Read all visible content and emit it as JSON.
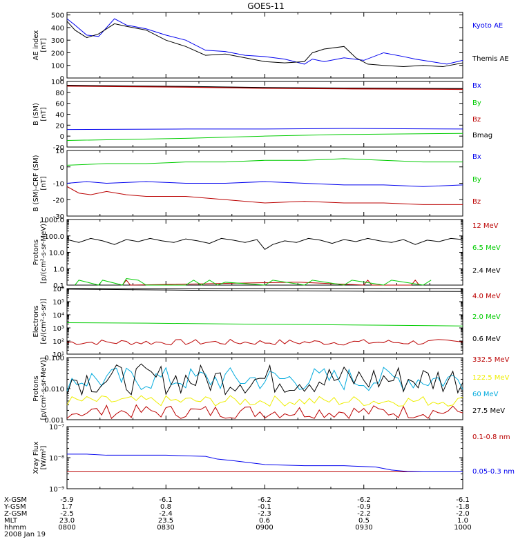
{
  "title": "GOES-11",
  "colors": {
    "black": "#000000",
    "blue": "#0000ee",
    "green": "#00cc00",
    "red": "#bb0000",
    "cyan": "#00aadd",
    "yellow": "#eeee00"
  },
  "chart_data": [
    {
      "id": "ae",
      "type": "line",
      "ylabel": [
        "AE index",
        "[nT]"
      ],
      "ylim": [
        0,
        520
      ],
      "log": false,
      "yticks": [
        0,
        100,
        200,
        300,
        400,
        500
      ],
      "series": [
        {
          "name": "Kyoto AE",
          "color": "blue",
          "x": [
            0,
            0.02,
            0.05,
            0.08,
            0.12,
            0.15,
            0.2,
            0.25,
            0.3,
            0.35,
            0.4,
            0.45,
            0.5,
            0.55,
            0.6,
            0.62,
            0.65,
            0.7,
            0.75,
            0.8,
            0.85,
            0.88,
            0.92,
            0.96,
            1.0
          ],
          "values": [
            470,
            420,
            340,
            330,
            470,
            420,
            390,
            340,
            300,
            220,
            210,
            180,
            170,
            150,
            110,
            150,
            130,
            160,
            140,
            200,
            170,
            150,
            130,
            110,
            140
          ]
        },
        {
          "name": "Themis AE",
          "color": "black",
          "x": [
            0,
            0.02,
            0.05,
            0.08,
            0.12,
            0.15,
            0.2,
            0.25,
            0.3,
            0.35,
            0.4,
            0.45,
            0.5,
            0.55,
            0.6,
            0.62,
            0.65,
            0.7,
            0.73,
            0.76,
            0.8,
            0.85,
            0.9,
            0.95,
            1.0
          ],
          "values": [
            450,
            380,
            320,
            350,
            430,
            410,
            380,
            300,
            250,
            180,
            190,
            160,
            130,
            120,
            130,
            200,
            230,
            250,
            160,
            110,
            100,
            90,
            100,
            90,
            120
          ]
        }
      ]
    },
    {
      "id": "bfield",
      "type": "line",
      "ylabel": [
        "B (SM)",
        "[nT]"
      ],
      "ylim": [
        -20,
        100
      ],
      "log": false,
      "yticks": [
        -20,
        0,
        20,
        40,
        60,
        80,
        100
      ],
      "series": [
        {
          "name": "Bx",
          "color": "blue",
          "x": [
            0,
            0.3,
            0.5,
            0.7,
            1.0
          ],
          "values": [
            12,
            13,
            13,
            14,
            13
          ]
        },
        {
          "name": "By",
          "color": "green",
          "x": [
            0,
            0.3,
            0.5,
            0.7,
            1.0
          ],
          "values": [
            -8,
            -4,
            0,
            3,
            5
          ]
        },
        {
          "name": "Bz",
          "color": "red",
          "x": [
            0,
            0.3,
            0.5,
            0.7,
            1.0
          ],
          "values": [
            92,
            90,
            88,
            87,
            86
          ]
        },
        {
          "name": "Bmag",
          "color": "black",
          "x": [
            0,
            0.3,
            0.5,
            0.7,
            1.0
          ],
          "values": [
            93,
            91,
            89,
            88,
            87
          ]
        }
      ]
    },
    {
      "id": "bcrf",
      "type": "line",
      "ylabel": [
        "B (SM)-CRF (SM)",
        "[nT]"
      ],
      "ylim": [
        -30,
        10
      ],
      "log": false,
      "yticks": [
        -30,
        -20,
        -10,
        0,
        10
      ],
      "series": [
        {
          "name": "Bx",
          "color": "blue",
          "x": [
            0,
            0.05,
            0.1,
            0.2,
            0.3,
            0.4,
            0.5,
            0.6,
            0.7,
            0.8,
            0.9,
            1.0
          ],
          "values": [
            -10,
            -9,
            -10,
            -9,
            -10,
            -10,
            -9,
            -10,
            -11,
            -11,
            -12,
            -11
          ]
        },
        {
          "name": "By",
          "color": "green",
          "x": [
            0,
            0.1,
            0.2,
            0.3,
            0.4,
            0.5,
            0.6,
            0.7,
            0.8,
            0.9,
            1.0
          ],
          "values": [
            1,
            2,
            2,
            3,
            3,
            4,
            4,
            5,
            4,
            3,
            3
          ]
        },
        {
          "name": "Bz",
          "color": "red",
          "x": [
            0,
            0.03,
            0.06,
            0.1,
            0.15,
            0.2,
            0.3,
            0.4,
            0.5,
            0.6,
            0.7,
            0.8,
            0.9,
            1.0
          ],
          "values": [
            -12,
            -16,
            -17,
            -15,
            -17,
            -18,
            -18,
            -20,
            -22,
            -21,
            -22,
            -22,
            -23,
            -23
          ]
        }
      ]
    },
    {
      "id": "protons1",
      "type": "line",
      "ylabel": [
        "Protons",
        "[p/(cm²-s-sr-MeV)]"
      ],
      "ylim": [
        0.1,
        1000
      ],
      "log": true,
      "yticks": [
        0.1,
        1.0,
        10.0,
        100.0,
        1000.0
      ],
      "ytick_labels": [
        "0.1",
        "1.0",
        "10.0",
        "100.0",
        "1000.0"
      ],
      "series": [
        {
          "name": "12 MeV",
          "color": "red",
          "x": [
            0.14,
            0.15,
            0.16,
            0.57,
            0.58,
            0.59,
            0.75,
            0.76,
            0.77,
            0.87,
            0.88,
            0.89
          ],
          "values": [
            0.1,
            0.2,
            0.1,
            0.15,
            0.15,
            0.15,
            0.1,
            0.2,
            0.1,
            0.1,
            0.2,
            0.1
          ]
        },
        {
          "name": "6.5 MeV",
          "color": "green",
          "x": [
            0.02,
            0.03,
            0.08,
            0.09,
            0.14,
            0.15,
            0.18,
            0.2,
            0.3,
            0.32,
            0.34,
            0.36,
            0.38,
            0.4,
            0.5,
            0.52,
            0.6,
            0.62,
            0.7,
            0.72,
            0.8,
            0.82,
            0.9,
            0.92
          ],
          "values": [
            0.1,
            0.2,
            0.1,
            0.2,
            0.1,
            0.25,
            0.2,
            0.1,
            0.1,
            0.2,
            0.1,
            0.2,
            0.1,
            0.15,
            0.1,
            0.2,
            0.1,
            0.2,
            0.1,
            0.2,
            0.1,
            0.2,
            0.1,
            0.2
          ]
        },
        {
          "name": "2.4 MeV",
          "color": "black",
          "x": [
            0,
            0.03,
            0.06,
            0.09,
            0.12,
            0.15,
            0.18,
            0.21,
            0.24,
            0.27,
            0.3,
            0.33,
            0.36,
            0.39,
            0.42,
            0.45,
            0.48,
            0.5,
            0.52,
            0.55,
            0.58,
            0.61,
            0.64,
            0.67,
            0.7,
            0.73,
            0.76,
            0.79,
            0.82,
            0.85,
            0.88,
            0.91,
            0.94,
            0.97,
            1.0
          ],
          "values": [
            60,
            40,
            70,
            50,
            30,
            60,
            45,
            70,
            50,
            40,
            65,
            50,
            35,
            70,
            55,
            40,
            60,
            15,
            30,
            50,
            40,
            70,
            55,
            35,
            60,
            45,
            70,
            50,
            40,
            60,
            30,
            55,
            45,
            70,
            60
          ]
        }
      ]
    },
    {
      "id": "electrons",
      "type": "line",
      "ylabel": [
        "Electrons",
        "[e/(cm²-s-sr)]"
      ],
      "ylim": [
        10,
        1000000
      ],
      "log": true,
      "yticks": [
        10,
        100,
        1000,
        10000,
        100000,
        1000000
      ],
      "ytick_labels": [
        "10¹",
        "10²",
        "10³",
        "10⁴",
        "10⁵",
        "10⁶"
      ],
      "series": [
        {
          "name": "4.0 MeV",
          "color": "red",
          "x": [],
          "values": []
        },
        {
          "name": "2.0 MeV",
          "color": "green",
          "x": [
            0,
            0.2,
            0.4,
            0.6,
            0.8,
            1.0
          ],
          "values": [
            2500,
            2300,
            2000,
            1800,
            1600,
            1400
          ]
        },
        {
          "name": "0.6 MeV",
          "color": "black",
          "x": [
            0,
            0.2,
            0.4,
            0.6,
            0.8,
            1.0
          ],
          "values": [
            900000,
            800000,
            700000,
            650000,
            620000,
            600000
          ]
        }
      ]
    },
    {
      "id": "protons2",
      "type": "line",
      "ylabel": [
        "Protons",
        "[p/(cm²-s-sr-MeV)]"
      ],
      "ylim": [
        0.001,
        0.1
      ],
      "log": true,
      "yticks": [
        0.001,
        0.01,
        0.1
      ],
      "ytick_labels": [
        "0.001",
        "0.010",
        "0.100"
      ],
      "series": [
        {
          "name": "332.5 MeV",
          "color": "red",
          "x": [],
          "values": []
        },
        {
          "name": "122.5 MeV",
          "color": "yellow",
          "x": [],
          "values": []
        },
        {
          "name": "60 MeV",
          "color": "cyan",
          "x": [],
          "values": []
        },
        {
          "name": "27.5 MeV",
          "color": "black",
          "x": [],
          "values": []
        }
      ]
    },
    {
      "id": "xray",
      "type": "line",
      "ylabel": [
        "Xray Flux",
        "[W/m²]"
      ],
      "ylim": [
        1e-09,
        1e-07
      ],
      "log": true,
      "yticks": [
        1e-09,
        1e-08,
        1e-07
      ],
      "ytick_labels": [
        "10⁻⁹",
        "10⁻⁸",
        "10⁻⁷"
      ],
      "series": [
        {
          "name": "0.1-0.8 nm",
          "color": "red",
          "x": [
            0,
            1.0
          ],
          "values": [
            3.5e-09,
            3.5e-09
          ]
        },
        {
          "name": "0.05-0.3 nm",
          "color": "blue",
          "x": [
            0,
            0.05,
            0.1,
            0.15,
            0.25,
            0.35,
            0.38,
            0.42,
            0.5,
            0.6,
            0.7,
            0.78,
            0.82,
            0.86,
            0.9,
            1.0
          ],
          "values": [
            1.3e-08,
            1.3e-08,
            1.2e-08,
            1.2e-08,
            1.2e-08,
            1.1e-08,
            9e-09,
            8e-09,
            6e-09,
            5.5e-09,
            5.5e-09,
            5e-09,
            4e-09,
            3.6e-09,
            3.5e-09,
            3.5e-09
          ]
        }
      ]
    }
  ],
  "footer": {
    "rows": [
      {
        "label": "X-GSM",
        "values": [
          "-5.9",
          "-6.1",
          "-6.2",
          "-6.2",
          "-6.1"
        ]
      },
      {
        "label": "Y-GSM",
        "values": [
          "1.7",
          "0.8",
          "-0.1",
          "-0.9",
          "-1.8"
        ]
      },
      {
        "label": "Z-GSM",
        "values": [
          "-2.5",
          "-2.4",
          "-2.3",
          "-2.2",
          "-2.0"
        ]
      },
      {
        "label": "MLT",
        "values": [
          "23.0",
          "23.5",
          "0.6",
          "0.5",
          "1.0"
        ]
      },
      {
        "label": "hhmm",
        "values": [
          "0800",
          "0830",
          "0900",
          "0930",
          "1000"
        ]
      }
    ],
    "date": "2008 Jan 19"
  }
}
